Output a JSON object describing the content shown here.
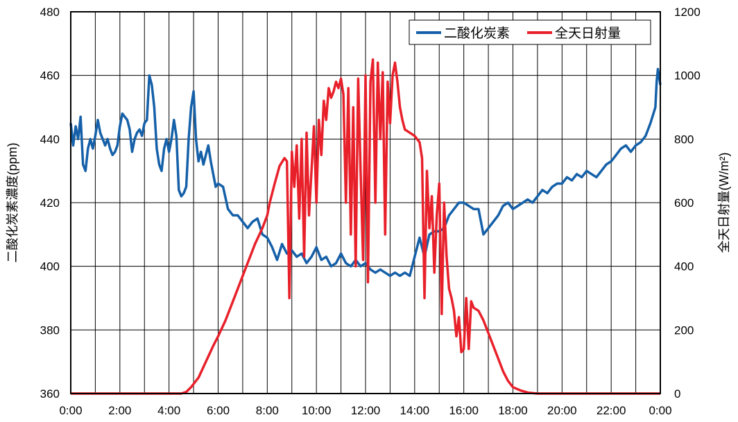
{
  "chart_data": {
    "type": "line",
    "title": "",
    "xlabel": "",
    "ylabel_left": "二酸化炭素濃度(ppm)",
    "ylabel_right": "全天日射量(W/m²)",
    "x_ticks": [
      "0:00",
      "2:00",
      "4:00",
      "6:00",
      "8:00",
      "10:00",
      "12:00",
      "14:00",
      "16:00",
      "18:00",
      "20:00",
      "22:00",
      "0:00"
    ],
    "x_range_hours": [
      0,
      24
    ],
    "y_left_range": [
      360,
      480
    ],
    "y_left_ticks": [
      "360",
      "380",
      "400",
      "420",
      "440",
      "460",
      "480"
    ],
    "y_right_range": [
      0,
      1200
    ],
    "y_right_ticks": [
      "0",
      "200",
      "400",
      "600",
      "800",
      "1000",
      "1200"
    ],
    "grid": true,
    "legend_position": "top-right",
    "series": [
      {
        "name": "二酸化炭素",
        "axis": "left",
        "color": "#1560a8",
        "points": [
          [
            0.0,
            445
          ],
          [
            0.1,
            438
          ],
          [
            0.2,
            444
          ],
          [
            0.3,
            440
          ],
          [
            0.4,
            447
          ],
          [
            0.5,
            432
          ],
          [
            0.6,
            430
          ],
          [
            0.7,
            437
          ],
          [
            0.8,
            440
          ],
          [
            0.9,
            437
          ],
          [
            1.0,
            441
          ],
          [
            1.1,
            446
          ],
          [
            1.2,
            442
          ],
          [
            1.3,
            440
          ],
          [
            1.4,
            438
          ],
          [
            1.5,
            440
          ],
          [
            1.6,
            437
          ],
          [
            1.7,
            435
          ],
          [
            1.8,
            436
          ],
          [
            1.9,
            438
          ],
          [
            2.0,
            444
          ],
          [
            2.1,
            448
          ],
          [
            2.2,
            447
          ],
          [
            2.3,
            446
          ],
          [
            2.4,
            443
          ],
          [
            2.5,
            436
          ],
          [
            2.6,
            440
          ],
          [
            2.7,
            442
          ],
          [
            2.8,
            443
          ],
          [
            2.9,
            441
          ],
          [
            3.0,
            445
          ],
          [
            3.1,
            446
          ],
          [
            3.2,
            460
          ],
          [
            3.3,
            457
          ],
          [
            3.4,
            450
          ],
          [
            3.5,
            437
          ],
          [
            3.6,
            432
          ],
          [
            3.7,
            430
          ],
          [
            3.8,
            437
          ],
          [
            3.9,
            440
          ],
          [
            4.0,
            436
          ],
          [
            4.1,
            440
          ],
          [
            4.2,
            446
          ],
          [
            4.3,
            441
          ],
          [
            4.4,
            424
          ],
          [
            4.5,
            422
          ],
          [
            4.6,
            423
          ],
          [
            4.7,
            425
          ],
          [
            4.8,
            440
          ],
          [
            4.9,
            450
          ],
          [
            5.0,
            455
          ],
          [
            5.1,
            440
          ],
          [
            5.2,
            433
          ],
          [
            5.3,
            436
          ],
          [
            5.4,
            432
          ],
          [
            5.5,
            435
          ],
          [
            5.6,
            438
          ],
          [
            5.7,
            433
          ],
          [
            5.8,
            429
          ],
          [
            5.9,
            425
          ],
          [
            6.0,
            426
          ],
          [
            6.2,
            425
          ],
          [
            6.4,
            418
          ],
          [
            6.6,
            416
          ],
          [
            6.8,
            416
          ],
          [
            7.0,
            414
          ],
          [
            7.2,
            412
          ],
          [
            7.4,
            414
          ],
          [
            7.6,
            415
          ],
          [
            7.8,
            410
          ],
          [
            8.0,
            409
          ],
          [
            8.2,
            406
          ],
          [
            8.4,
            402
          ],
          [
            8.6,
            407
          ],
          [
            8.8,
            404
          ],
          [
            9.0,
            405
          ],
          [
            9.2,
            403
          ],
          [
            9.4,
            404
          ],
          [
            9.6,
            401
          ],
          [
            9.8,
            403
          ],
          [
            10.0,
            406
          ],
          [
            10.2,
            402
          ],
          [
            10.4,
            403
          ],
          [
            10.6,
            400
          ],
          [
            10.8,
            401
          ],
          [
            11.0,
            404
          ],
          [
            11.2,
            401
          ],
          [
            11.4,
            400
          ],
          [
            11.6,
            402
          ],
          [
            11.8,
            400
          ],
          [
            12.0,
            401
          ],
          [
            12.2,
            399
          ],
          [
            12.4,
            398
          ],
          [
            12.6,
            399
          ],
          [
            12.8,
            398
          ],
          [
            13.0,
            397
          ],
          [
            13.2,
            398
          ],
          [
            13.4,
            397
          ],
          [
            13.6,
            398
          ],
          [
            13.8,
            397
          ],
          [
            14.0,
            403
          ],
          [
            14.2,
            409
          ],
          [
            14.4,
            403
          ],
          [
            14.6,
            410
          ],
          [
            14.8,
            411
          ],
          [
            15.0,
            411
          ],
          [
            15.2,
            412
          ],
          [
            15.4,
            416
          ],
          [
            15.6,
            418
          ],
          [
            15.8,
            420
          ],
          [
            16.0,
            420
          ],
          [
            16.2,
            419
          ],
          [
            16.4,
            418
          ],
          [
            16.6,
            418
          ],
          [
            16.8,
            410
          ],
          [
            17.0,
            412
          ],
          [
            17.2,
            414
          ],
          [
            17.4,
            416
          ],
          [
            17.6,
            419
          ],
          [
            17.8,
            420
          ],
          [
            18.0,
            418
          ],
          [
            18.2,
            419
          ],
          [
            18.4,
            420
          ],
          [
            18.6,
            421
          ],
          [
            18.8,
            420
          ],
          [
            19.0,
            422
          ],
          [
            19.2,
            424
          ],
          [
            19.4,
            423
          ],
          [
            19.6,
            425
          ],
          [
            19.8,
            426
          ],
          [
            20.0,
            426
          ],
          [
            20.2,
            428
          ],
          [
            20.4,
            427
          ],
          [
            20.6,
            429
          ],
          [
            20.8,
            428
          ],
          [
            21.0,
            430
          ],
          [
            21.2,
            429
          ],
          [
            21.4,
            428
          ],
          [
            21.6,
            430
          ],
          [
            21.8,
            432
          ],
          [
            22.0,
            433
          ],
          [
            22.2,
            435
          ],
          [
            22.4,
            437
          ],
          [
            22.6,
            438
          ],
          [
            22.8,
            436
          ],
          [
            23.0,
            438
          ],
          [
            23.2,
            439
          ],
          [
            23.4,
            441
          ],
          [
            23.6,
            445
          ],
          [
            23.8,
            450
          ],
          [
            23.85,
            458
          ],
          [
            23.9,
            462
          ],
          [
            24.0,
            457
          ]
        ]
      },
      {
        "name": "全天日射量",
        "axis": "right",
        "color": "#e8202a",
        "points": [
          [
            0.0,
            0
          ],
          [
            1.0,
            0
          ],
          [
            2.0,
            0
          ],
          [
            3.0,
            0
          ],
          [
            4.0,
            0
          ],
          [
            4.5,
            0
          ],
          [
            4.7,
            5
          ],
          [
            4.9,
            20
          ],
          [
            5.2,
            50
          ],
          [
            5.5,
            100
          ],
          [
            5.8,
            150
          ],
          [
            6.0,
            180
          ],
          [
            6.3,
            230
          ],
          [
            6.6,
            290
          ],
          [
            6.9,
            350
          ],
          [
            7.2,
            410
          ],
          [
            7.5,
            470
          ],
          [
            7.8,
            520
          ],
          [
            8.0,
            560
          ],
          [
            8.1,
            600
          ],
          [
            8.3,
            660
          ],
          [
            8.5,
            715
          ],
          [
            8.7,
            740
          ],
          [
            8.8,
            730
          ],
          [
            8.9,
            300
          ],
          [
            9.0,
            760
          ],
          [
            9.1,
            650
          ],
          [
            9.2,
            780
          ],
          [
            9.3,
            550
          ],
          [
            9.4,
            800
          ],
          [
            9.5,
            430
          ],
          [
            9.6,
            820
          ],
          [
            9.7,
            560
          ],
          [
            9.8,
            700
          ],
          [
            9.9,
            840
          ],
          [
            10.0,
            600
          ],
          [
            10.1,
            860
          ],
          [
            10.2,
            750
          ],
          [
            10.3,
            920
          ],
          [
            10.4,
            860
          ],
          [
            10.5,
            960
          ],
          [
            10.6,
            930
          ],
          [
            10.7,
            950
          ],
          [
            10.8,
            980
          ],
          [
            10.9,
            960
          ],
          [
            11.0,
            990
          ],
          [
            11.1,
            940
          ],
          [
            11.2,
            600
          ],
          [
            11.3,
            960
          ],
          [
            11.4,
            500
          ],
          [
            11.5,
            900
          ],
          [
            11.6,
            400
          ],
          [
            11.7,
            990
          ],
          [
            11.8,
            700
          ],
          [
            11.9,
            420
          ],
          [
            12.0,
            1000
          ],
          [
            12.1,
            350
          ],
          [
            12.2,
            980
          ],
          [
            12.3,
            1050
          ],
          [
            12.4,
            600
          ],
          [
            12.5,
            1040
          ],
          [
            12.6,
            800
          ],
          [
            12.7,
            1010
          ],
          [
            12.8,
            500
          ],
          [
            12.9,
            980
          ],
          [
            13.0,
            850
          ],
          [
            13.1,
            1000
          ],
          [
            13.2,
            1040
          ],
          [
            13.3,
            980
          ],
          [
            13.4,
            900
          ],
          [
            13.5,
            860
          ],
          [
            13.6,
            830
          ],
          [
            13.8,
            820
          ],
          [
            14.0,
            810
          ],
          [
            14.2,
            790
          ],
          [
            14.3,
            740
          ],
          [
            14.4,
            300
          ],
          [
            14.5,
            700
          ],
          [
            14.6,
            520
          ],
          [
            14.7,
            620
          ],
          [
            14.8,
            380
          ],
          [
            14.9,
            560
          ],
          [
            15.0,
            660
          ],
          [
            15.1,
            250
          ],
          [
            15.2,
            600
          ],
          [
            15.3,
            430
          ],
          [
            15.4,
            330
          ],
          [
            15.5,
            300
          ],
          [
            15.6,
            260
          ],
          [
            15.7,
            180
          ],
          [
            15.8,
            240
          ],
          [
            15.9,
            130
          ],
          [
            16.0,
            140
          ],
          [
            16.1,
            300
          ],
          [
            16.2,
            140
          ],
          [
            16.3,
            290
          ],
          [
            16.4,
            270
          ],
          [
            16.6,
            260
          ],
          [
            16.8,
            230
          ],
          [
            17.0,
            190
          ],
          [
            17.2,
            150
          ],
          [
            17.4,
            110
          ],
          [
            17.6,
            70
          ],
          [
            17.8,
            40
          ],
          [
            18.0,
            20
          ],
          [
            18.3,
            10
          ],
          [
            18.6,
            3
          ],
          [
            19.0,
            0
          ],
          [
            20.0,
            0
          ],
          [
            22.0,
            0
          ],
          [
            24.0,
            0
          ]
        ]
      }
    ]
  }
}
